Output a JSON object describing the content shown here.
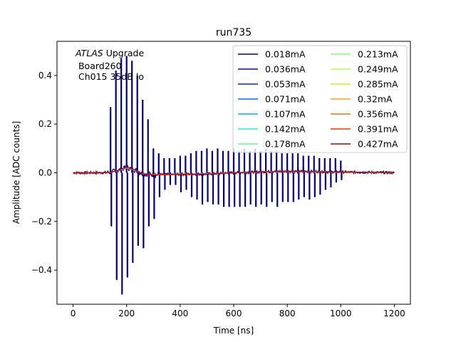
{
  "chart_data": {
    "type": "line",
    "title": "run735",
    "xlabel": "Time [ns]",
    "ylabel": "Amplitude [ADC counts]",
    "xlim": [
      -60,
      1260
    ],
    "ylim": [
      -0.54,
      0.54
    ],
    "x_ticks": [
      0,
      200,
      400,
      600,
      800,
      1000,
      1200
    ],
    "y_ticks": [
      -0.4,
      -0.2,
      0.0,
      0.2,
      0.4
    ],
    "x_tick_labels": [
      "0",
      "200",
      "400",
      "600",
      "800",
      "1000",
      "1200"
    ],
    "y_tick_labels": [
      "−0.4",
      "−0.2",
      "0.0",
      "0.2",
      "0.4"
    ],
    "grid": false,
    "legend_position": "top-right",
    "legend_columns": 2,
    "annotation": {
      "italic": "ATLAS",
      "rest": " Upgrade",
      "line2": " Board260",
      "line3": " Ch015 35dB lo"
    },
    "series": [
      {
        "name": "0.018mA",
        "color": "#00007f"
      },
      {
        "name": "0.036mA",
        "color": "#0000d9"
      },
      {
        "name": "0.053mA",
        "color": "#0020ff"
      },
      {
        "name": "0.071mA",
        "color": "#0070ff"
      },
      {
        "name": "0.107mA",
        "color": "#00b4ff"
      },
      {
        "name": "0.142mA",
        "color": "#1fedd8"
      },
      {
        "name": "0.178mA",
        "color": "#53ffa4"
      },
      {
        "name": "0.213mA",
        "color": "#86ff71"
      },
      {
        "name": "0.249mA",
        "color": "#b9ff3d"
      },
      {
        "name": "0.285mA",
        "color": "#ede40a"
      },
      {
        "name": "0.32mA",
        "color": "#ffa800"
      },
      {
        "name": "0.356mA",
        "color": "#ff6c00"
      },
      {
        "name": "0.391mA",
        "color": "#ff3000"
      },
      {
        "name": "0.427mA",
        "color": "#c40000"
      }
    ],
    "spikes": {
      "x": [
        140,
        160,
        180,
        200,
        220,
        240,
        260,
        280,
        300,
        320,
        340,
        360,
        380,
        400,
        420,
        440,
        460,
        480,
        500,
        520,
        540,
        560,
        580,
        600,
        620,
        640,
        660,
        680,
        700,
        720,
        740,
        760,
        780,
        800,
        820,
        840,
        860,
        880,
        900,
        920,
        940,
        960,
        980,
        1000
      ],
      "up": [
        0.27,
        0.42,
        0.47,
        0.48,
        0.46,
        0.4,
        0.3,
        0.22,
        0.1,
        0.08,
        0.06,
        0.06,
        0.06,
        0.07,
        0.07,
        0.08,
        0.09,
        0.09,
        0.1,
        0.09,
        0.1,
        0.09,
        0.09,
        0.1,
        0.09,
        0.1,
        0.09,
        0.1,
        0.09,
        0.1,
        0.09,
        0.09,
        0.08,
        0.08,
        0.08,
        0.08,
        0.07,
        0.07,
        0.07,
        0.06,
        0.06,
        0.06,
        0.06,
        0.05
      ],
      "down": [
        -0.22,
        -0.44,
        -0.5,
        -0.43,
        -0.37,
        -0.3,
        -0.31,
        -0.22,
        -0.19,
        -0.1,
        -0.07,
        -0.05,
        -0.05,
        -0.08,
        -0.07,
        -0.1,
        -0.11,
        -0.13,
        -0.12,
        -0.13,
        -0.13,
        -0.14,
        -0.14,
        -0.14,
        -0.14,
        -0.14,
        -0.13,
        -0.14,
        -0.13,
        -0.14,
        -0.12,
        -0.14,
        -0.12,
        -0.12,
        -0.12,
        -0.11,
        -0.1,
        -0.11,
        -0.1,
        -0.09,
        -0.07,
        -0.06,
        -0.04,
        -0.03
      ]
    },
    "baseline_x": [
      0,
      100,
      140,
      170,
      200,
      230,
      260,
      300,
      400,
      500,
      600,
      700,
      800,
      900,
      1000,
      1100,
      1200
    ],
    "baseline_y": [
      0.0,
      0.0,
      0.002,
      0.01,
      0.022,
      0.012,
      -0.004,
      -0.008,
      -0.006,
      -0.005,
      0.0,
      0.004,
      0.006,
      0.005,
      0.003,
      0.002,
      0.0
    ]
  }
}
